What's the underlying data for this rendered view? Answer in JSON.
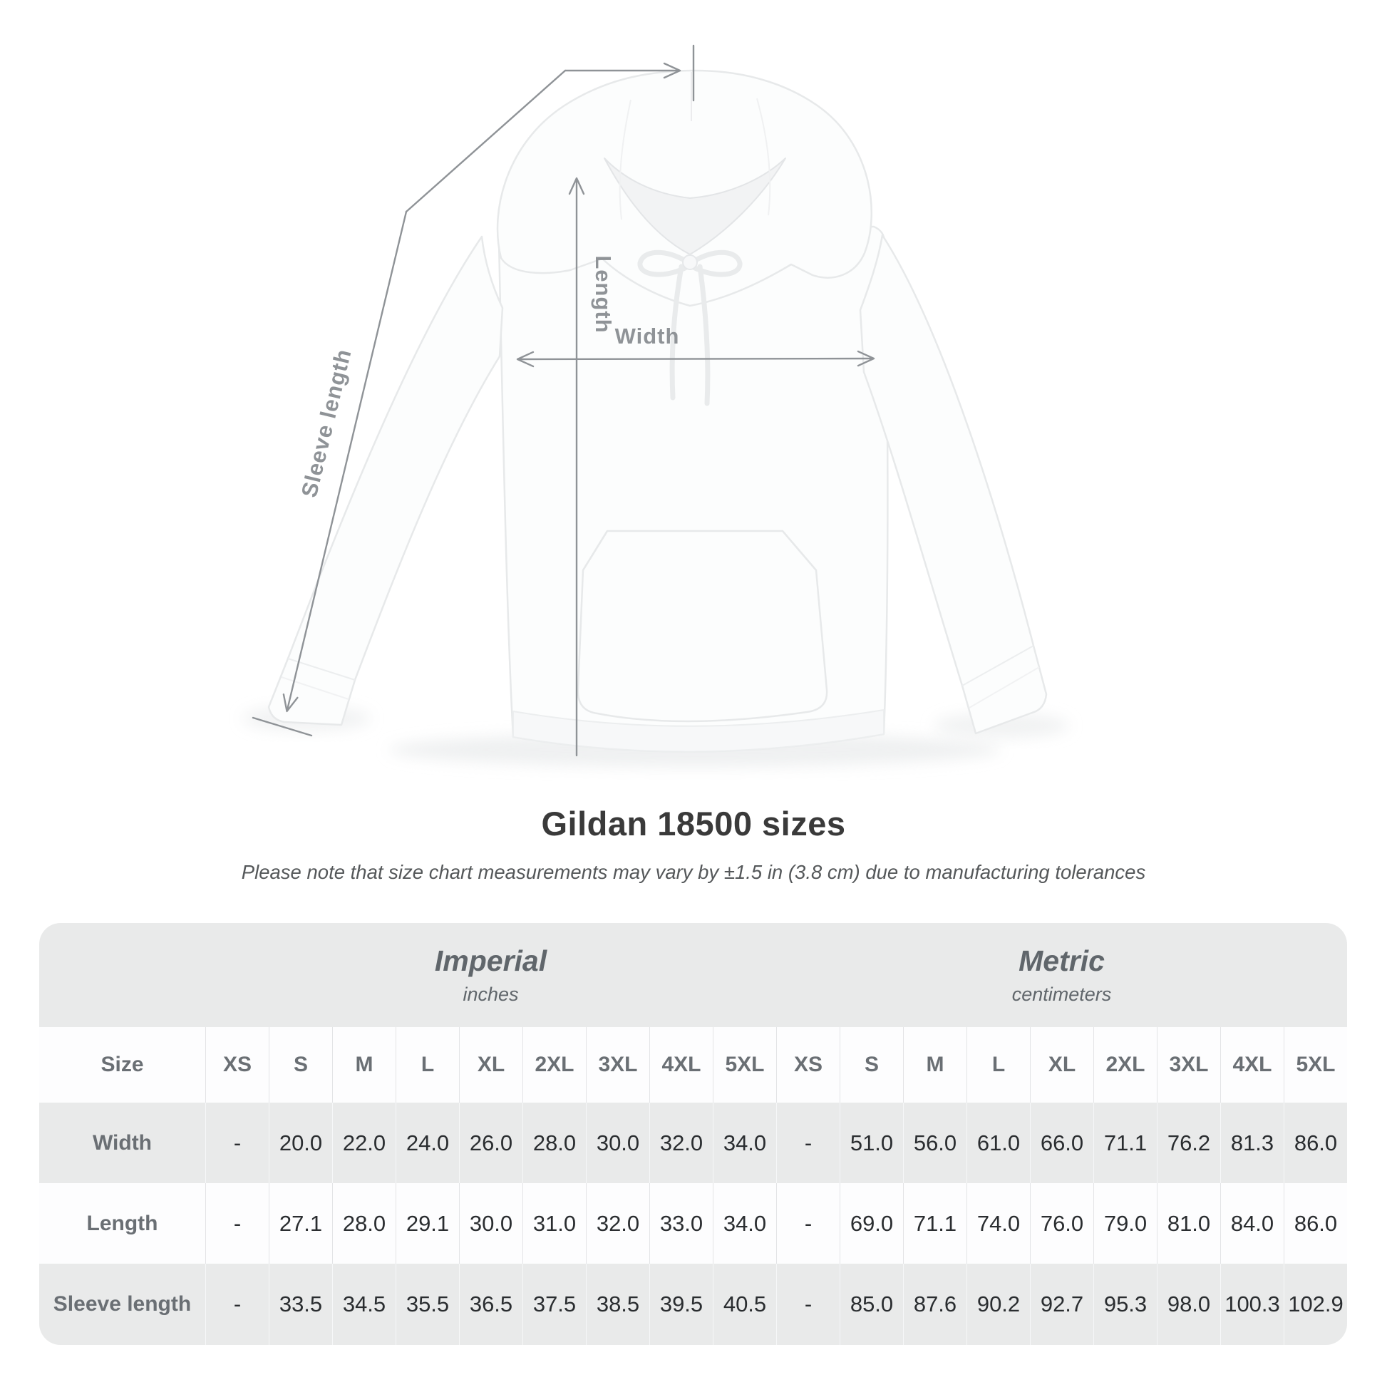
{
  "title": "Gildan 18500 sizes",
  "subtitle": "Please note that size chart measurements may vary by ±1.5 in (3.8 cm) due to manufacturing tolerances",
  "diagram": {
    "sleeve_label": "Sleeve length",
    "length_label": "Length",
    "width_label": "Width"
  },
  "table": {
    "size_label": "Size",
    "unit_groups": [
      {
        "name": "Imperial",
        "unit": "inches"
      },
      {
        "name": "Metric",
        "unit": "centimeters"
      }
    ],
    "sizes": [
      "XS",
      "S",
      "M",
      "L",
      "XL",
      "2XL",
      "3XL",
      "4XL",
      "5XL"
    ],
    "rows": [
      {
        "label": "Width",
        "imperial": [
          "-",
          "20.0",
          "22.0",
          "24.0",
          "26.0",
          "28.0",
          "30.0",
          "32.0",
          "34.0"
        ],
        "metric": [
          "-",
          "51.0",
          "56.0",
          "61.0",
          "66.0",
          "71.1",
          "76.2",
          "81.3",
          "86.0"
        ]
      },
      {
        "label": "Length",
        "imperial": [
          "-",
          "27.1",
          "28.0",
          "29.1",
          "30.0",
          "31.0",
          "32.0",
          "33.0",
          "34.0"
        ],
        "metric": [
          "-",
          "69.0",
          "71.1",
          "74.0",
          "76.0",
          "79.0",
          "81.0",
          "84.0",
          "86.0"
        ]
      },
      {
        "label": "Sleeve length",
        "imperial": [
          "-",
          "33.5",
          "34.5",
          "35.5",
          "36.5",
          "37.5",
          "38.5",
          "39.5",
          "40.5"
        ],
        "metric": [
          "-",
          "85.0",
          "87.6",
          "90.2",
          "92.7",
          "95.3",
          "98.0",
          "100.3",
          "102.9"
        ]
      }
    ]
  },
  "colors": {
    "dimension_gray": "#8f9397",
    "title_text": "#3a3a3a",
    "note_text": "#55585a",
    "table_bg": "#e9eaea",
    "table_row_white": "#fdfdfe",
    "header_text": "#6a6f74",
    "value_text": "#2a2d30"
  }
}
